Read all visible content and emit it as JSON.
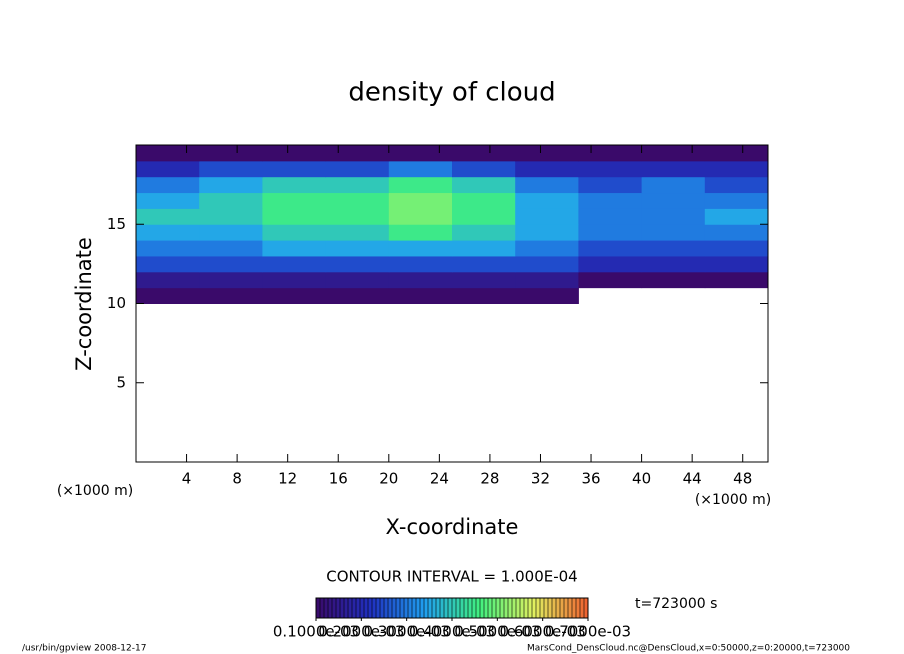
{
  "chart_data": {
    "type": "heatmap",
    "title": "density of cloud",
    "xlabel": "X-coordinate",
    "ylabel": "Z-coordinate",
    "xunit": "(×1000 m)",
    "yunit": "(×1000 m)",
    "contour_interval": "CONTOUR INTERVAL = 1.000E-04",
    "time_label": "t=723000 s",
    "footer_left": "/usr/bin/gpview  2008-12-17",
    "footer_right": "MarsCond_DensCloud.nc@DensCloud,x=0:50000,z=0:20000,t=723000",
    "xlim": [
      0,
      50
    ],
    "ylim": [
      0,
      20
    ],
    "xticks": [
      4,
      8,
      12,
      16,
      20,
      24,
      28,
      32,
      36,
      40,
      44,
      48
    ],
    "yticks": [
      5,
      10,
      15
    ],
    "x_edges": [
      0,
      5,
      10,
      15,
      20,
      25,
      30,
      35,
      40,
      45,
      50
    ],
    "z_edges": [
      10,
      11,
      12,
      13,
      14,
      15,
      16,
      17,
      18,
      19,
      20
    ],
    "values": [
      [
        0.0001,
        0.0001,
        0.0001,
        0.0001,
        0.0001,
        0.0001,
        0.0001,
        null,
        null,
        null
      ],
      [
        0.00015,
        0.00015,
        0.00015,
        0.00015,
        0.00015,
        0.00015,
        0.00015,
        0.0001,
        0.0001,
        0.0001
      ],
      [
        0.00025,
        0.00025,
        0.00025,
        0.00025,
        0.00025,
        0.00025,
        0.00025,
        0.0002,
        0.0002,
        0.0002
      ],
      [
        0.0003,
        0.0003,
        0.00035,
        0.00035,
        0.00035,
        0.00035,
        0.0003,
        0.00025,
        0.00025,
        0.00025
      ],
      [
        0.00035,
        0.00035,
        0.0004,
        0.0004,
        0.00045,
        0.0004,
        0.00035,
        0.0003,
        0.0003,
        0.0003
      ],
      [
        0.0004,
        0.0004,
        0.00045,
        0.00045,
        0.0005,
        0.00045,
        0.00035,
        0.0003,
        0.0003,
        0.00035
      ],
      [
        0.00035,
        0.0004,
        0.00045,
        0.00045,
        0.0005,
        0.00045,
        0.00035,
        0.0003,
        0.0003,
        0.0003
      ],
      [
        0.0003,
        0.00035,
        0.0004,
        0.0004,
        0.00045,
        0.0004,
        0.0003,
        0.00025,
        0.0003,
        0.00025
      ],
      [
        0.0002,
        0.00025,
        0.00025,
        0.00025,
        0.0003,
        0.00025,
        0.0002,
        0.0002,
        0.0002,
        0.0002
      ],
      [
        0.0001,
        0.0001,
        0.0001,
        0.0001,
        0.0001,
        0.0001,
        0.0001,
        0.0001,
        0.0001,
        0.0001
      ]
    ],
    "colorbar": {
      "lim": [
        0.0001,
        0.0007
      ],
      "colors": [
        "#3a0a6a",
        "#2030c0",
        "#20a0f0",
        "#40f080",
        "#e0f060",
        "#f06030"
      ],
      "ticks": [
        {
          "value": 0.0001,
          "label": "0.1000e-03"
        },
        {
          "value": 0.0002,
          "label": "0.2000e-03"
        },
        {
          "value": 0.0003,
          "label": "0.3000e-03"
        },
        {
          "value": 0.0004,
          "label": "0.4000e-03"
        },
        {
          "value": 0.0005,
          "label": "0.5000e-03"
        },
        {
          "value": 0.0006,
          "label": "0.6000e-03"
        },
        {
          "value": 0.0007,
          "label": "0.7000e-03"
        }
      ]
    }
  }
}
